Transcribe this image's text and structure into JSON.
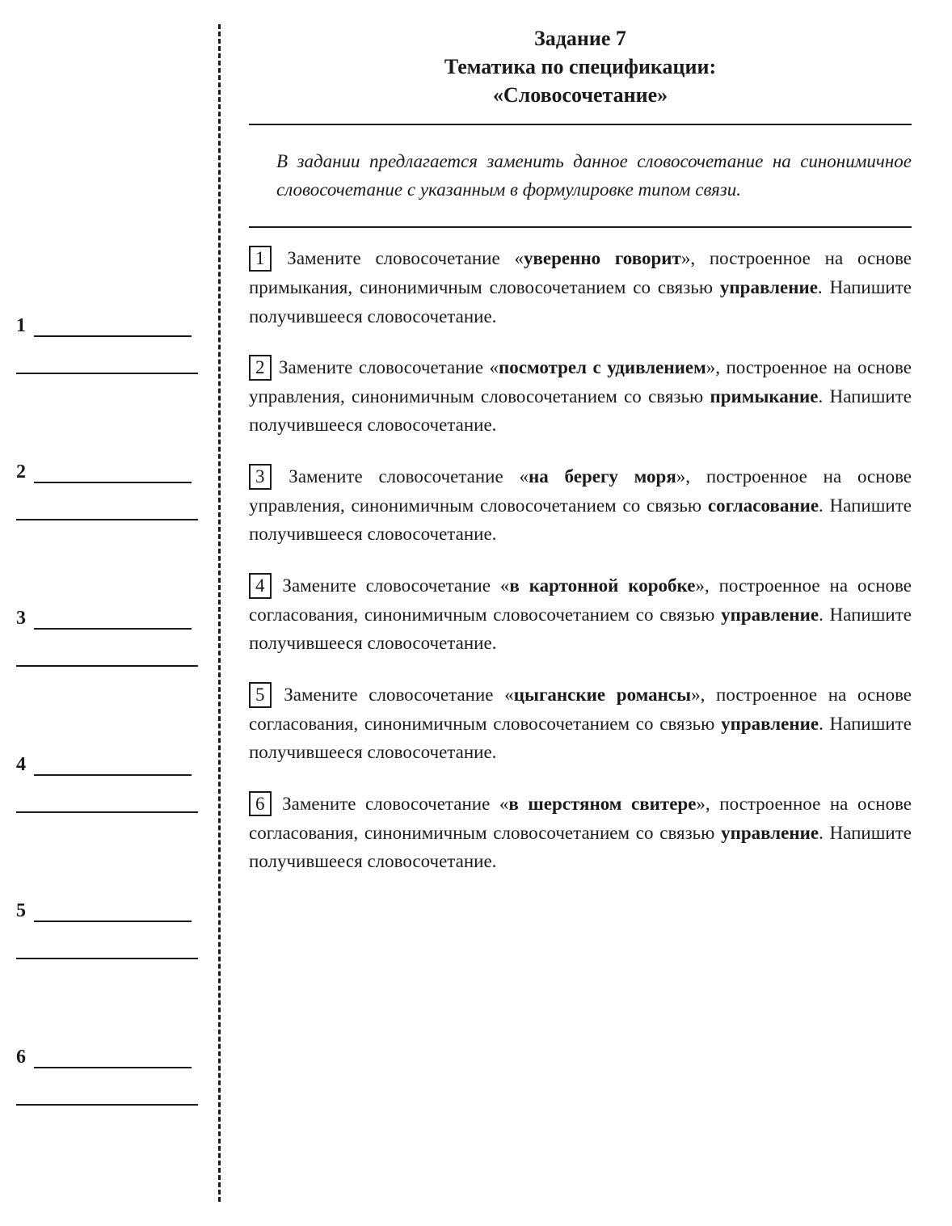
{
  "colors": {
    "text": "#1a1a1a",
    "background": "#ffffff",
    "rule": "#1a1a1a"
  },
  "typography": {
    "title_fontsize": 26,
    "body_fontsize": 23,
    "font_family": "Georgia, Times New Roman, serif"
  },
  "title": {
    "line1": "Задание 7",
    "line2": "Тематика по спецификации:",
    "line3": "«Словосочетание»"
  },
  "intro": "В задании предлагается заменить данное словосо­четание на синонимичное словосочетание с указанным в формулировке типом связи.",
  "questions": [
    {
      "num": "1",
      "pre": " Замените словосочетание «",
      "bold1": "уверенно говорит",
      "mid": "», по­строенное на основе примыкания, синонимичным сло­восочетанием со связью ",
      "bold2": "управление",
      "post": ". Напишите полу­чившееся словосочетание."
    },
    {
      "num": "2",
      "pre": " Замените словосочетание «",
      "bold1": "посмотрел с удивлени­ем",
      "mid": "», построенное на основе управления, синонимичным словосочетанием со связью ",
      "bold2": "примыкание",
      "post": ". Напишите по­лучившееся словосочетание."
    },
    {
      "num": "3",
      "pre": " Замените словосочетание «",
      "bold1": "на берегу моря",
      "mid": "», постро­енное на основе управления, синонимичным словосоче­танием со связью ",
      "bold2": "согласование",
      "post": ". Напишите получивше­еся словосочетание."
    },
    {
      "num": "4",
      "pre": " Замените словосочетание «",
      "bold1": "в картонной коробке",
      "mid": "», построенное на основе согласования, синонимичным словосочетанием со связью ",
      "bold2": "управление",
      "post": ". Напишите по­лучившееся словосочетание."
    },
    {
      "num": "5",
      "pre": " Замените словосочетание «",
      "bold1": "цыганские романсы",
      "mid": "», по­строенное на основе согласования, синонимичным сло­восочетанием со связью ",
      "bold2": "управление",
      "post": ". Напишите полу­чившееся словосочетание."
    },
    {
      "num": "6",
      "pre": " Замените словосочетание «",
      "bold1": "в шерстяном свитере",
      "mid": "», построенное на основе согласования, синонимичным словосочетанием со связью ",
      "bold2": "управление",
      "post": ". Напишите по­лучившееся словосочетание."
    }
  ],
  "answer_slots": [
    "1",
    "2",
    "3",
    "4",
    "5",
    "6"
  ]
}
